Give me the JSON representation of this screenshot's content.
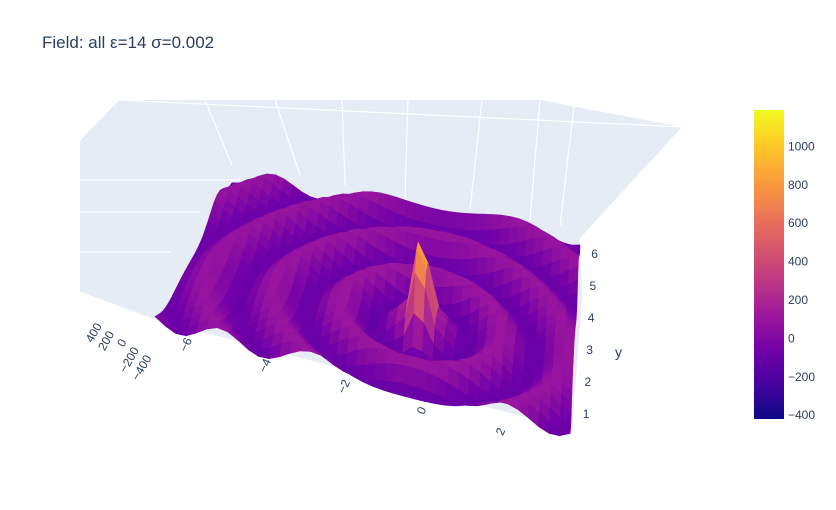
{
  "chart_data": {
    "type": "surface",
    "title": "Field: all ε=14 σ=0.002",
    "x_axis": {
      "label": "",
      "range": [
        -7,
        3.5
      ],
      "ticks": [
        "−6",
        "−4",
        "−2",
        "0",
        "2"
      ],
      "tick_values": [
        -6,
        -4,
        -2,
        0,
        2
      ]
    },
    "y_axis": {
      "label": "y",
      "range": [
        0.5,
        6.5
      ],
      "ticks": [
        "1",
        "2",
        "3",
        "4",
        "5",
        "6"
      ],
      "tick_values": [
        1,
        2,
        3,
        4,
        5,
        6
      ]
    },
    "z_axis": {
      "label": "",
      "range": [
        -500,
        500
      ],
      "ticks": [
        "400",
        "200",
        "0",
        "−200",
        "−400"
      ],
      "tick_values": [
        400,
        200,
        0,
        -200,
        -400
      ]
    },
    "data_range": {
      "min": -420,
      "max": 1190
    },
    "peak": {
      "x": -0.6,
      "y": 2.7,
      "value": 1190
    },
    "pattern": "concentric ripples centered near the peak, amplitude about ±150",
    "colorscale": "Plasma",
    "colorbar": {
      "ticks": [
        "1000",
        "800",
        "600",
        "400",
        "200",
        "0",
        "−200",
        "−400"
      ],
      "tick_values": [
        1000,
        800,
        600,
        400,
        200,
        0,
        -200,
        -400
      ],
      "range": [
        -420,
        1190
      ]
    },
    "colors": [
      "#0d0887",
      "#46039f",
      "#7201a8",
      "#9c179e",
      "#bd3786",
      "#d8576b",
      "#ed7953",
      "#fb9f3a",
      "#fdca26",
      "#f0f921"
    ]
  }
}
